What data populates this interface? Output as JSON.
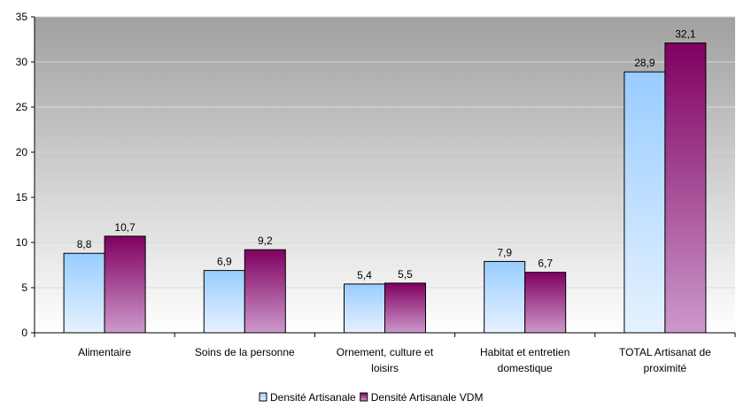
{
  "chart_data": {
    "type": "bar",
    "categories": [
      [
        "Alimentaire"
      ],
      [
        "Soins de la personne"
      ],
      [
        "Ornement, culture et",
        "loisirs"
      ],
      [
        "Habitat et entretien",
        "domestique"
      ],
      [
        "TOTAL Artisanat de",
        "proximité"
      ]
    ],
    "series": [
      {
        "name": "Densité Artisanale",
        "values": [
          8.8,
          6.9,
          5.4,
          7.9,
          28.9
        ],
        "labels": [
          "8,8",
          "6,9",
          "5,4",
          "7,9",
          "28,9"
        ],
        "color_top": "#99ccff",
        "color_bottom": "#e6f2ff"
      },
      {
        "name": "Densité Artisanale VDM",
        "values": [
          10.7,
          9.2,
          5.5,
          6.7,
          32.1
        ],
        "labels": [
          "10,7",
          "9,2",
          "5,5",
          "6,7",
          "32,1"
        ],
        "color_top": "#800060",
        "color_bottom": "#cc99cc"
      }
    ],
    "y_ticks": [
      0,
      5,
      10,
      15,
      20,
      25,
      30,
      35
    ],
    "ylim": [
      0,
      35
    ],
    "grid": true,
    "legend_position": "bottom",
    "plot_background": "gradient-gray"
  }
}
